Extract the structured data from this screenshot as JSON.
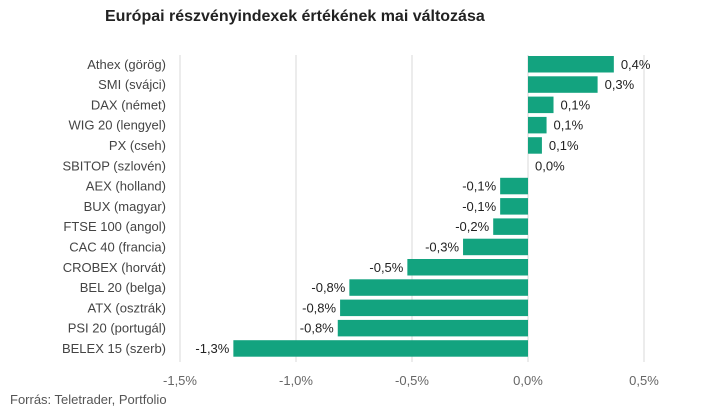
{
  "title": "Európai részvényindexek értékének mai változása",
  "source": "Forrás: Teletrader, Portfolio",
  "colors": {
    "bar": "#13a37f",
    "grid": "#d9d9d9"
  },
  "chart_data": {
    "type": "bar",
    "orientation": "horizontal",
    "title": "Európai részvényindexek értékének mai változása",
    "categories": [
      "Athex (görög)",
      "SMI (svájci)",
      "DAX (német)",
      "WIG 20 (lengyel)",
      "PX (cseh)",
      "SBITOP (szlovén)",
      "AEX (holland)",
      "BUX (magyar)",
      "FTSE 100 (angol)",
      "CAC 40 (francia)",
      "CROBEX (horvát)",
      "BEL 20 (belga)",
      "ATX (osztrák)",
      "PSI 20 (portugál)",
      "BELEX 15 (szerb)"
    ],
    "values": [
      0.37,
      0.3,
      0.11,
      0.08,
      0.06,
      0.0,
      -0.12,
      -0.12,
      -0.15,
      -0.28,
      -0.52,
      -0.77,
      -0.81,
      -0.82,
      -1.27
    ],
    "labels": [
      "0,4%",
      "0,3%",
      "0,1%",
      "0,1%",
      "0,1%",
      "0,0%",
      "-0,1%",
      "-0,1%",
      "-0,2%",
      "-0,3%",
      "-0,5%",
      "-0,8%",
      "-0,8%",
      "-0,8%",
      "-1,3%"
    ],
    "xlim": [
      -1.5,
      0.5
    ],
    "xticks": [
      -1.5,
      -1.0,
      -0.5,
      0.0,
      0.5
    ],
    "xtick_labels": [
      "-1,5%",
      "-1,0%",
      "-0,5%",
      "0,0%",
      "0,5%"
    ],
    "grid": true,
    "legend": "none"
  }
}
